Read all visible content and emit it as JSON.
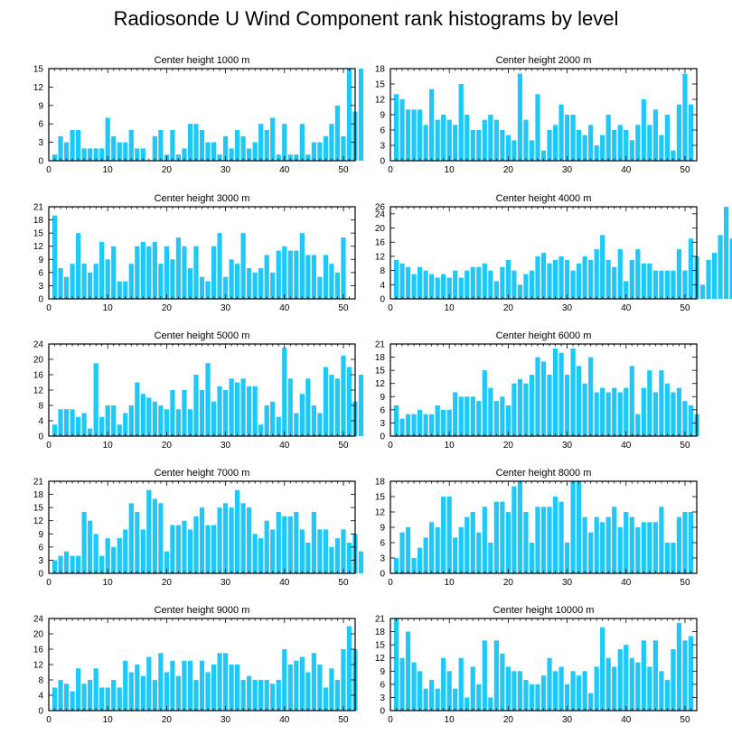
{
  "title": "Radiosonde U Wind Component rank histograms by level",
  "colors": {
    "bar": "#1EC8F8",
    "axis": "#000000"
  },
  "chart_data": [
    {
      "type": "bar",
      "title": "Center height 1000 m",
      "xlim": [
        0,
        52
      ],
      "ylim": [
        0,
        15
      ],
      "xticks": [
        0,
        10,
        20,
        30,
        40,
        50
      ],
      "yticks": [
        0,
        3,
        6,
        9,
        12,
        15
      ],
      "values": [
        1,
        4,
        3,
        5,
        5,
        2,
        2,
        2,
        2,
        7,
        4,
        3,
        3,
        5,
        2,
        2,
        0,
        4,
        5,
        1,
        5,
        1,
        2,
        6,
        6,
        5,
        3,
        3,
        1,
        4,
        2,
        5,
        4,
        2,
        3,
        6,
        5,
        7,
        1,
        6,
        1,
        1,
        6,
        1,
        3,
        3,
        4,
        6,
        9,
        4,
        15,
        8,
        15
      ]
    },
    {
      "type": "bar",
      "title": "Center height 2000 m",
      "xlim": [
        0,
        52
      ],
      "ylim": [
        0,
        18
      ],
      "xticks": [
        0,
        10,
        20,
        30,
        40,
        50
      ],
      "yticks": [
        0,
        3,
        6,
        9,
        12,
        15,
        18
      ],
      "values": [
        13,
        12,
        10,
        10,
        10,
        7,
        14,
        8,
        9,
        8,
        7,
        15,
        9,
        6,
        6,
        8,
        9,
        8,
        6,
        5,
        4,
        17,
        8,
        4,
        13,
        2,
        6,
        7,
        11,
        9,
        9,
        6,
        5,
        7,
        3,
        5,
        9,
        6,
        7,
        6,
        4,
        7,
        12,
        7,
        10,
        5,
        9,
        2,
        11,
        17,
        11
      ]
    },
    {
      "type": "bar",
      "title": "Center height 3000 m",
      "xlim": [
        0,
        52
      ],
      "ylim": [
        0,
        21
      ],
      "xticks": [
        0,
        10,
        20,
        30,
        40,
        50
      ],
      "yticks": [
        0,
        3,
        6,
        9,
        12,
        15,
        18,
        21
      ],
      "values": [
        19,
        7,
        5,
        8,
        15,
        8,
        6,
        8,
        13,
        9,
        12,
        4,
        4,
        8,
        12,
        13,
        12,
        13,
        8,
        12,
        9,
        14,
        12,
        7,
        12,
        5,
        4,
        12,
        15,
        5,
        9,
        8,
        15,
        7,
        6,
        7,
        10,
        6,
        11,
        12,
        11,
        11,
        15,
        10,
        10,
        5,
        10,
        8,
        6,
        14
      ]
    },
    {
      "type": "bar",
      "title": "Center height 4000 m",
      "xlim": [
        0,
        52
      ],
      "ylim": [
        0,
        26
      ],
      "xticks": [
        0,
        10,
        20,
        30,
        40,
        50
      ],
      "yticks": [
        0,
        4,
        8,
        12,
        16,
        20,
        24,
        26
      ],
      "values": [
        11,
        10,
        9,
        7,
        9,
        8,
        7,
        6,
        7,
        6,
        8,
        6,
        8,
        9,
        9,
        10,
        8,
        5,
        9,
        11,
        8,
        4,
        7,
        8,
        12,
        13,
        10,
        11,
        12,
        11,
        8,
        10,
        12,
        11,
        14,
        18,
        11,
        9,
        14,
        5,
        11,
        14,
        10,
        10,
        8,
        8,
        8,
        8,
        14,
        8,
        17,
        12,
        4,
        11,
        13,
        18,
        26,
        17
      ]
    },
    {
      "type": "bar",
      "title": "Center height 5000 m",
      "xlim": [
        0,
        52
      ],
      "ylim": [
        0,
        24
      ],
      "xticks": [
        0,
        10,
        20,
        30,
        40,
        50
      ],
      "yticks": [
        0,
        4,
        8,
        12,
        16,
        20,
        24
      ],
      "values": [
        3,
        7,
        7,
        7,
        5,
        6,
        2,
        19,
        5,
        8,
        8,
        3,
        6,
        8,
        14,
        11,
        10,
        9,
        8,
        7,
        12,
        7,
        12,
        7,
        16,
        12,
        19,
        9,
        13,
        12,
        15,
        14,
        15,
        13,
        13,
        3,
        8,
        9,
        5,
        23,
        15,
        6,
        11,
        15,
        8,
        6,
        18,
        16,
        15,
        21,
        18,
        9,
        16
      ]
    },
    {
      "type": "bar",
      "title": "Center height 6000 m",
      "xlim": [
        0,
        52
      ],
      "ylim": [
        0,
        21
      ],
      "xticks": [
        0,
        10,
        20,
        30,
        40,
        50
      ],
      "yticks": [
        0,
        3,
        6,
        9,
        12,
        15,
        18,
        21
      ],
      "values": [
        7,
        4,
        5,
        5,
        6,
        5,
        5,
        7,
        6,
        6,
        10,
        9,
        9,
        9,
        8,
        15,
        11,
        8,
        9,
        7,
        12,
        13,
        12,
        14,
        18,
        17,
        14,
        20,
        19,
        14,
        20,
        16,
        12,
        18,
        10,
        11,
        10,
        11,
        10,
        11,
        16,
        5,
        11,
        15,
        10,
        15,
        12,
        10,
        11,
        8,
        7,
        5
      ]
    },
    {
      "type": "bar",
      "title": "Center height 7000 m",
      "xlim": [
        0,
        52
      ],
      "ylim": [
        0,
        21
      ],
      "xticks": [
        0,
        10,
        20,
        30,
        40,
        50
      ],
      "yticks": [
        0,
        3,
        6,
        9,
        12,
        15,
        18,
        21
      ],
      "values": [
        3,
        4,
        5,
        4,
        4,
        14,
        12,
        9,
        4,
        8,
        6,
        8,
        10,
        16,
        14,
        10,
        19,
        17,
        16,
        5,
        11,
        11,
        12,
        10,
        13,
        15,
        11,
        11,
        15,
        16,
        15,
        19,
        16,
        15,
        9,
        8,
        12,
        10,
        14,
        13,
        13,
        14,
        10,
        7,
        14,
        10,
        10,
        6,
        8,
        10,
        7,
        9,
        5
      ]
    },
    {
      "type": "bar",
      "title": "Center height 8000 m",
      "xlim": [
        0,
        52
      ],
      "ylim": [
        0,
        18
      ],
      "xticks": [
        0,
        10,
        20,
        30,
        40,
        50
      ],
      "yticks": [
        0,
        3,
        6,
        9,
        12,
        15,
        18
      ],
      "values": [
        3,
        8,
        9,
        3,
        5,
        7,
        10,
        9,
        15,
        15,
        7,
        9,
        11,
        12,
        8,
        13,
        6,
        14,
        14,
        12,
        17,
        18,
        12,
        6,
        13,
        13,
        13,
        15,
        14,
        6,
        18,
        18,
        11,
        8,
        11,
        10,
        11,
        13,
        9,
        12,
        11,
        9,
        10,
        10,
        10,
        13,
        6,
        6,
        11,
        12,
        12
      ]
    },
    {
      "type": "bar",
      "title": "Center height 9000 m",
      "xlim": [
        0,
        52
      ],
      "ylim": [
        0,
        24
      ],
      "xticks": [
        0,
        10,
        20,
        30,
        40,
        50
      ],
      "yticks": [
        0,
        4,
        8,
        12,
        16,
        20,
        24
      ],
      "values": [
        6,
        8,
        7,
        5,
        11,
        7,
        8,
        11,
        6,
        6,
        8,
        6,
        13,
        10,
        12,
        9,
        14,
        8,
        15,
        10,
        13,
        9,
        13,
        13,
        8,
        13,
        10,
        12,
        15,
        15,
        12,
        12,
        8,
        9,
        8,
        8,
        8,
        7,
        8,
        16,
        12,
        13,
        14,
        10,
        15,
        12,
        6,
        11,
        8,
        16,
        22,
        16
      ]
    },
    {
      "type": "bar",
      "title": "Center height 10000 m",
      "xlim": [
        0,
        52
      ],
      "ylim": [
        0,
        21
      ],
      "xticks": [
        0,
        10,
        20,
        30,
        40,
        50
      ],
      "yticks": [
        0,
        3,
        6,
        9,
        12,
        15,
        18,
        21
      ],
      "values": [
        21,
        12,
        18,
        11,
        9,
        5,
        7,
        5,
        12,
        9,
        5,
        12,
        3,
        10,
        6,
        16,
        3,
        16,
        13,
        10,
        9,
        9,
        7,
        6,
        6,
        8,
        12,
        9,
        10,
        6,
        9,
        8,
        9,
        4,
        10,
        19,
        12,
        10,
        14,
        15,
        12,
        11,
        16,
        10,
        16,
        9,
        7,
        14,
        20,
        16,
        17
      ]
    }
  ]
}
